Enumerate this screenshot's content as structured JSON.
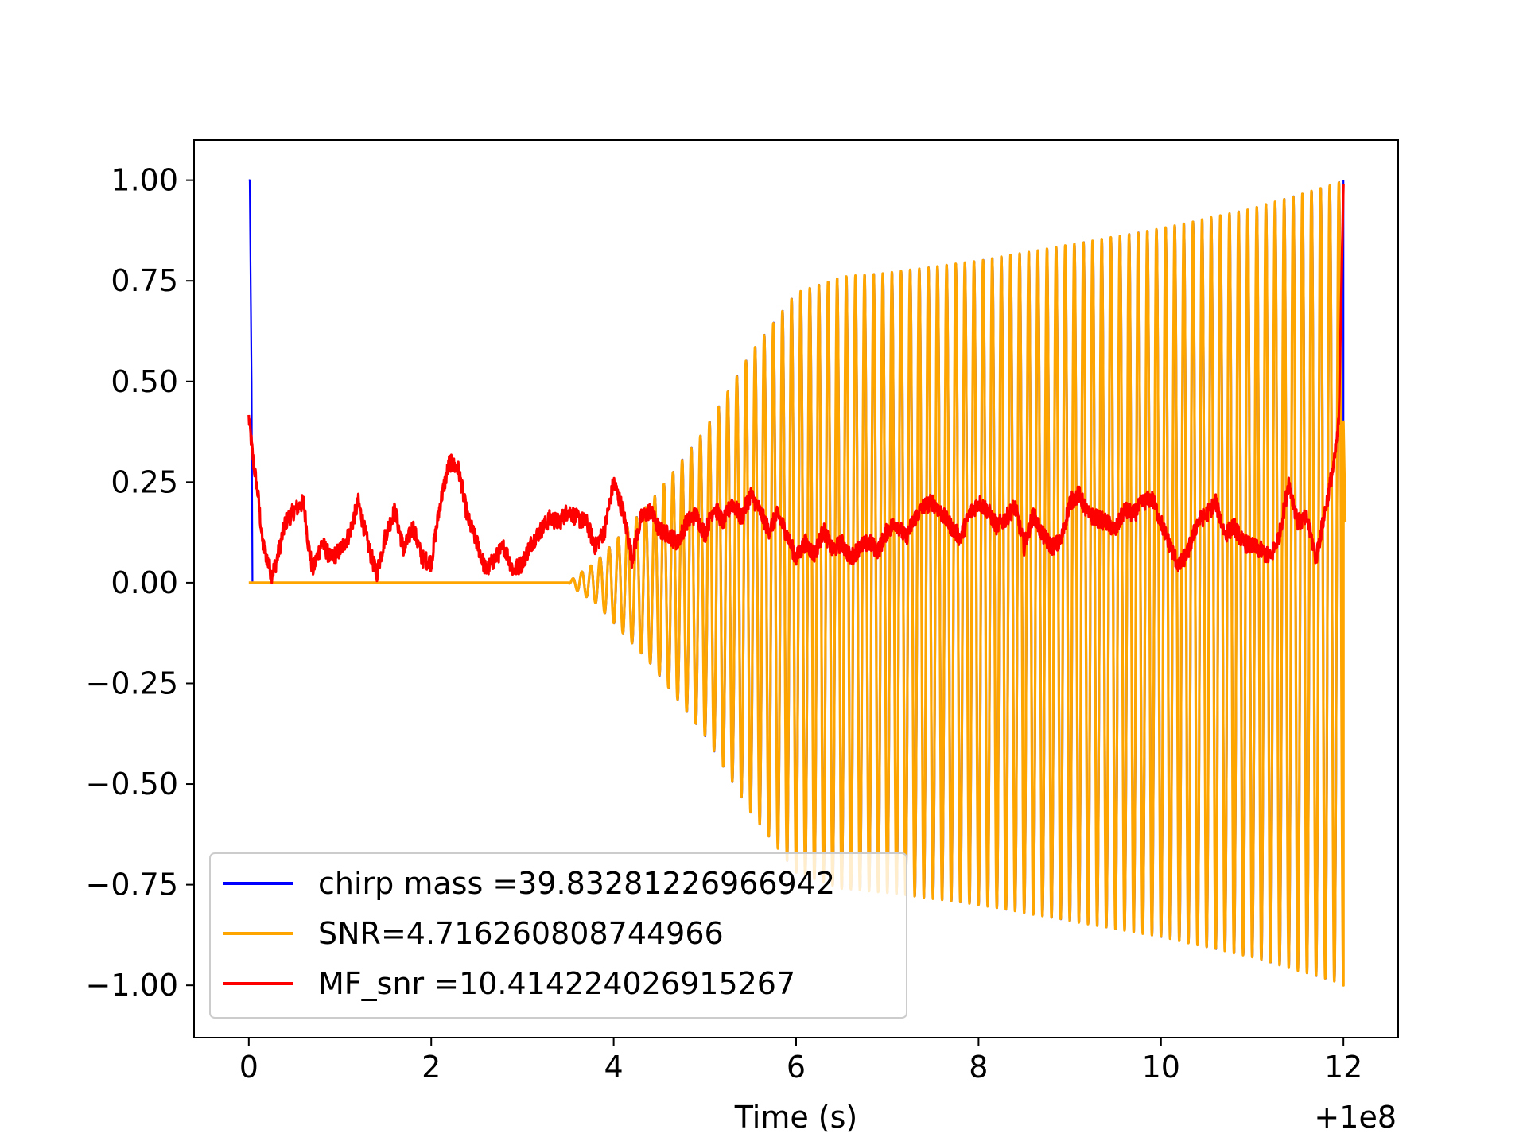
{
  "chart_data": {
    "type": "line",
    "title": "",
    "xlabel": "Time (s)",
    "ylabel": "",
    "x_offset_label": "+1e8",
    "xlim": [
      -0.6,
      12.6
    ],
    "ylim": [
      -1.13,
      1.1
    ],
    "x_ticks": [
      0,
      2,
      4,
      6,
      8,
      10,
      12
    ],
    "x_tick_labels": [
      "0",
      "2",
      "4",
      "6",
      "8",
      "10",
      "12"
    ],
    "y_ticks": [
      1.0,
      0.75,
      0.5,
      0.25,
      0.0,
      -0.25,
      -0.5,
      -0.75,
      -1.0
    ],
    "y_tick_labels": [
      "1.00",
      "0.75",
      "0.50",
      "0.25",
      "0.00",
      "−0.25",
      "−0.50",
      "−0.75",
      "−1.00"
    ],
    "grid": false,
    "legend_position": "lower-left",
    "series": [
      {
        "name": "chirp mass =39.83281226966942",
        "color": "#0000ff",
        "start": {
          "x": [
            0.0,
            0.01,
            0.03,
            0.04,
            0.05,
            3.5
          ],
          "y": [
            1.0,
            1.0,
            0.5,
            0.0,
            0.0,
            0.0
          ]
        },
        "oscillation": {
          "x_start": 3.5,
          "x_end": 12.0,
          "cycles": 85,
          "phase_lag_cycles": 0.04,
          "envelope": {
            "x": [
              3.5,
              3.6,
              3.8,
              4.0,
              4.4,
              5.0,
              5.5,
              6.0,
              6.5,
              7.0,
              8.0,
              9.0,
              10.0,
              11.0,
              11.9,
              12.0
            ],
            "y": [
              0.0,
              0.02,
              0.05,
              0.1,
              0.2,
              0.38,
              0.57,
              0.72,
              0.76,
              0.77,
              0.8,
              0.84,
              0.88,
              0.93,
              0.99,
              1.0
            ]
          }
        },
        "end": {
          "x": [
            12.0,
            12.0
          ],
          "y": [
            0.0,
            1.0
          ]
        }
      },
      {
        "name": "SNR=4.716260808744966",
        "color": "#ffa500",
        "start": {
          "x": [
            0.0,
            3.5
          ],
          "y": [
            0.0,
            0.0
          ]
        },
        "oscillation": {
          "x_start": 3.5,
          "x_end": 12.0,
          "cycles": 85,
          "phase_lag_cycles": 0.0,
          "envelope": {
            "x": [
              3.5,
              3.6,
              3.8,
              4.0,
              4.4,
              5.0,
              5.5,
              6.0,
              6.5,
              7.0,
              8.0,
              9.0,
              10.0,
              11.0,
              11.9,
              12.0
            ],
            "y": [
              0.0,
              0.02,
              0.05,
              0.1,
              0.2,
              0.38,
              0.57,
              0.72,
              0.76,
              0.77,
              0.8,
              0.84,
              0.88,
              0.93,
              0.99,
              1.0
            ]
          }
        },
        "end": {
          "x": [
            12.0,
            12.02
          ],
          "y": [
            0.4,
            0.15
          ]
        }
      },
      {
        "name": "MF_snr =10.414224026915267",
        "color": "#ff0000",
        "noise_amplitude": 0.022,
        "x": [
          0.0,
          0.05,
          0.1,
          0.15,
          0.25,
          0.3,
          0.4,
          0.5,
          0.6,
          0.65,
          0.7,
          0.8,
          0.9,
          1.0,
          1.1,
          1.2,
          1.3,
          1.4,
          1.5,
          1.6,
          1.7,
          1.8,
          1.9,
          2.0,
          2.1,
          2.2,
          2.3,
          2.4,
          2.5,
          2.6,
          2.7,
          2.8,
          2.9,
          3.0,
          3.1,
          3.2,
          3.3,
          3.4,
          3.5,
          3.6,
          3.7,
          3.8,
          3.9,
          4.0,
          4.1,
          4.2,
          4.3,
          4.4,
          4.5,
          4.6,
          4.7,
          4.8,
          4.9,
          5.0,
          5.1,
          5.2,
          5.3,
          5.4,
          5.5,
          5.6,
          5.7,
          5.8,
          5.9,
          6.0,
          6.1,
          6.2,
          6.3,
          6.4,
          6.5,
          6.6,
          6.7,
          6.8,
          6.9,
          7.0,
          7.1,
          7.2,
          7.3,
          7.4,
          7.5,
          7.6,
          7.7,
          7.8,
          7.9,
          8.0,
          8.1,
          8.2,
          8.3,
          8.4,
          8.5,
          8.6,
          8.7,
          8.8,
          8.9,
          9.0,
          9.1,
          9.2,
          9.3,
          9.4,
          9.5,
          9.6,
          9.7,
          9.8,
          9.9,
          10.0,
          10.1,
          10.2,
          10.3,
          10.4,
          10.5,
          10.6,
          10.7,
          10.8,
          10.9,
          11.0,
          11.1,
          11.2,
          11.3,
          11.4,
          11.5,
          11.6,
          11.7,
          11.8,
          11.9,
          11.95,
          12.0
        ],
        "y": [
          0.41,
          0.3,
          0.22,
          0.1,
          0.02,
          0.05,
          0.15,
          0.18,
          0.2,
          0.1,
          0.03,
          0.1,
          0.06,
          0.08,
          0.12,
          0.2,
          0.1,
          0.02,
          0.12,
          0.18,
          0.08,
          0.14,
          0.06,
          0.05,
          0.2,
          0.3,
          0.28,
          0.16,
          0.1,
          0.03,
          0.06,
          0.09,
          0.03,
          0.05,
          0.1,
          0.13,
          0.16,
          0.15,
          0.18,
          0.16,
          0.15,
          0.09,
          0.13,
          0.25,
          0.18,
          0.06,
          0.16,
          0.18,
          0.13,
          0.12,
          0.1,
          0.15,
          0.17,
          0.12,
          0.19,
          0.15,
          0.2,
          0.16,
          0.22,
          0.18,
          0.13,
          0.17,
          0.12,
          0.06,
          0.1,
          0.07,
          0.13,
          0.08,
          0.1,
          0.06,
          0.09,
          0.1,
          0.08,
          0.13,
          0.15,
          0.11,
          0.16,
          0.19,
          0.2,
          0.17,
          0.14,
          0.11,
          0.17,
          0.2,
          0.18,
          0.14,
          0.16,
          0.19,
          0.09,
          0.17,
          0.12,
          0.09,
          0.1,
          0.2,
          0.22,
          0.17,
          0.16,
          0.15,
          0.13,
          0.18,
          0.17,
          0.2,
          0.21,
          0.15,
          0.09,
          0.04,
          0.08,
          0.15,
          0.17,
          0.2,
          0.12,
          0.14,
          0.1,
          0.09,
          0.08,
          0.06,
          0.12,
          0.25,
          0.15,
          0.16,
          0.06,
          0.18,
          0.3,
          0.4,
          0.99
        ]
      }
    ]
  }
}
